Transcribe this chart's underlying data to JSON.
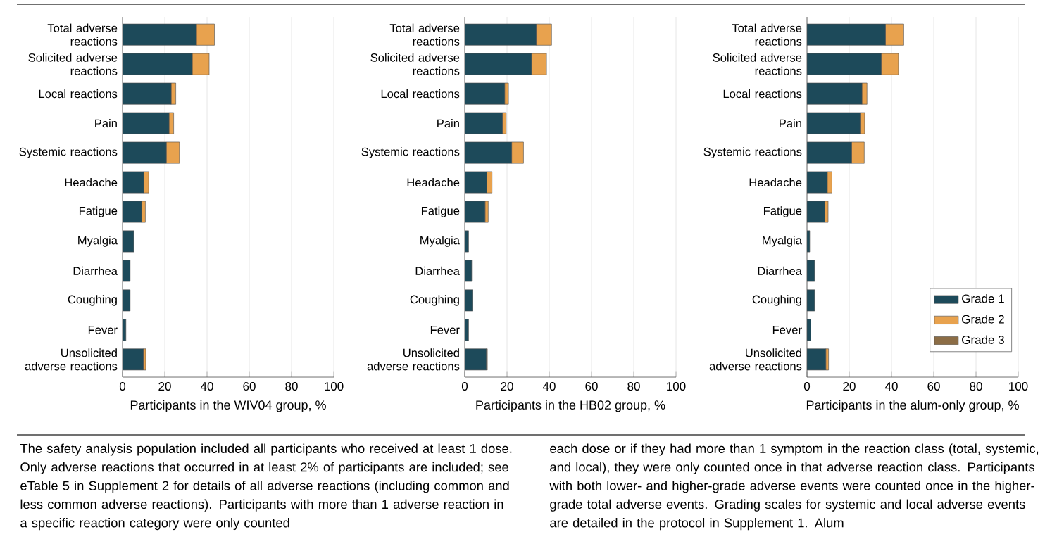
{
  "chart_data": [
    {
      "type": "bar",
      "orientation": "horizontal",
      "stacked": true,
      "grid": "x",
      "legend": false,
      "categories": [
        "Total adverse reactions",
        "Solicited adverse reactions",
        "Local reactions",
        "Pain",
        "Systemic reactions",
        "Headache",
        "Fatigue",
        "Myalgia",
        "Diarrhea",
        "Coughing",
        "Fever",
        "Unsolicited adverse reactions"
      ],
      "xlabel": "Participants in the WIV04 group, %",
      "xlim": [
        0,
        100
      ],
      "xticks": [
        0,
        20,
        40,
        60,
        80,
        100
      ],
      "series": [
        {
          "color": "#1d4a5a",
          "values": [
            35,
            33,
            23,
            22,
            20.7,
            10,
            9,
            5.3,
            3.6,
            3.6,
            1.6,
            9.8
          ]
        },
        {
          "color": "#e8a24e",
          "values": [
            8.5,
            8,
            2.2,
            2.2,
            6.2,
            2.4,
            1.8,
            null,
            null,
            null,
            null,
            1.2
          ]
        }
      ],
      "annotations": [
        "The safety analysis population included all participants who received at least 1 dose. Only adverse reactions that occurred in at least 2% of participants are included; see eTable 5 in Supplement 2 for details of all adverse reactions (including common and less common adverse reactions). Participants with more than 1 adverse reaction in a specific reaction category were only counted",
        "each dose or if they had more than 1 symptom in the reaction class (total, systemic, and local), they were only counted once in that adverse reaction class. Participants with both lower- and higher-grade adverse events were counted once in the higher-grade total adverse events. Grading scales for systemic and local adverse events are detailed in the protocol in Supplement 1. Alum"
      ]
    },
    {
      "type": "bar",
      "orientation": "horizontal",
      "stacked": true,
      "grid": "x",
      "legend": false,
      "categories": [
        "Total adverse reactions",
        "Solicited adverse reactions",
        "Local reactions",
        "Pain",
        "Systemic reactions",
        "Headache",
        "Fatigue",
        "Myalgia",
        "Diarrhea",
        "Coughing",
        "Fever",
        "Unsolicited adverse reactions"
      ],
      "xlabel": "Participants in the HB02 group, %",
      "xlim": [
        0,
        100
      ],
      "xticks": [
        0,
        20,
        40,
        60,
        80,
        100
      ],
      "series": [
        {
          "color": "#1d4a5a",
          "values": [
            33.8,
            31.6,
            18.9,
            17.8,
            22.2,
            10.4,
            9.6,
            1.8,
            3.3,
            3.6,
            1.8,
            10.2
          ]
        },
        {
          "color": "#e8a24e",
          "values": [
            7.3,
            7.1,
            1.8,
            1.8,
            5.6,
            2.5,
            1.5,
            null,
            null,
            null,
            null,
            0.5
          ]
        }
      ]
    },
    {
      "type": "bar",
      "orientation": "horizontal",
      "stacked": true,
      "grid": "x",
      "legend": "bottom right",
      "categories": [
        "Total adverse reactions",
        "Solicited adverse reactions",
        "Local reactions",
        "Pain",
        "Systemic reactions",
        "Headache",
        "Fatigue",
        "Myalgia",
        "Diarrhea",
        "Coughing",
        "Fever",
        "Unsolicited adverse reactions"
      ],
      "xlabel": "Participants in the alum-only group, %",
      "xlim": [
        0,
        100
      ],
      "xticks": [
        0,
        20,
        40,
        60,
        80,
        100
      ],
      "series": [
        {
          "name": "Grade 1",
          "color": "#1d4a5a",
          "values": [
            37.1,
            35.1,
            26,
            25.1,
            21.1,
            9.6,
            8.4,
            1.3,
            3.6,
            3.6,
            1.8,
            8.9
          ]
        },
        {
          "name": "Grade 2",
          "color": "#e8a24e",
          "values": [
            8.7,
            8.2,
            2.4,
            2.2,
            6,
            2.2,
            1.6,
            null,
            null,
            null,
            null,
            1.3
          ]
        },
        {
          "name": "Grade 3",
          "color": "#8c6d46",
          "values": [
            null,
            null,
            null,
            null,
            null,
            null,
            null,
            null,
            null,
            null,
            null,
            null
          ]
        }
      ]
    }
  ]
}
